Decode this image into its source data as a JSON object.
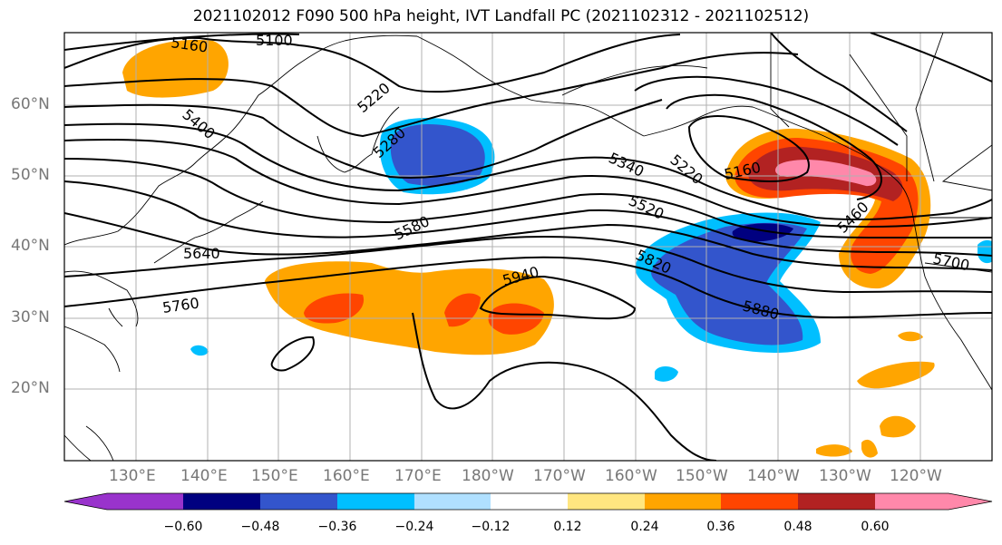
{
  "title": "2021102012 F090 500 hPa height, IVT Landfall PC (2021102312 - 2021102512)",
  "lat_labels": [
    "60°N",
    "50°N",
    "40°N",
    "30°N",
    "20°N"
  ],
  "lon_labels": [
    "130°E",
    "140°E",
    "150°E",
    "160°E",
    "170°E",
    "180°W",
    "170°W",
    "160°W",
    "150°W",
    "140°W",
    "130°W",
    "120°W"
  ],
  "contour_labels": [
    "5160",
    "5100",
    "5220",
    "5400",
    "5280",
    "5340",
    "5520",
    "5580",
    "5640",
    "5760",
    "5940",
    "5820",
    "5880",
    "5160",
    "5220",
    "5460",
    "5700"
  ],
  "colorbar": {
    "tick_labels": [
      "−0.60",
      "−0.48",
      "−0.36",
      "−0.24",
      "−0.12",
      "0.12",
      "0.24",
      "0.36",
      "0.48",
      "0.60"
    ],
    "colors": [
      "#9933cc",
      "#000080",
      "#3355cc",
      "#00bfff",
      "#b0e0ff",
      "#ffffff",
      "#ffe680",
      "#ffa500",
      "#ff4500",
      "#b22222",
      "#ff88aa"
    ]
  },
  "fill_colors": {
    "neg_light": "#00bfff",
    "neg_mid": "#3355cc",
    "neg_dark": "#000080",
    "pos_light": "#ffe680",
    "pos_mid": "#ffa500",
    "pos_strong": "#ff4500",
    "pos_dark": "#b22222",
    "pos_max": "#ff88aa"
  }
}
